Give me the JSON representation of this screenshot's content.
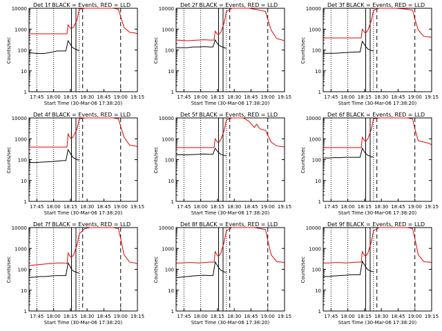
{
  "colors": {
    "events": "#000000",
    "lld": "#e00000"
  },
  "chart_data": [
    {
      "type": "line",
      "title": "Det 1f BLACK = Events, RED = LLD",
      "ylabel": "Counts/sec",
      "xlabel": "Start Time (30-Mar-06 17:38:20)",
      "y_scale": "log",
      "ylim": [
        1,
        10000
      ],
      "yticks": [
        "1",
        "10",
        "100",
        "1000",
        "10000"
      ],
      "xticks": [
        "17:45",
        "18:00",
        "18:15",
        "18:30",
        "18:45",
        "19:00",
        "19:15"
      ],
      "series": [
        {
          "name": "LLD",
          "x": [
            0,
            5,
            10,
            15,
            20,
            25,
            30,
            34,
            35,
            37,
            38,
            40,
            43,
            45,
            50,
            55,
            60,
            65,
            70,
            75,
            80,
            82,
            85,
            90,
            95,
            97
          ],
          "y": [
            600,
            600,
            600,
            600,
            600,
            600,
            600,
            600,
            1600,
            1100,
            1050,
            1300,
            2800,
            9000,
            10000,
            10000,
            10000,
            10000,
            10000,
            10000,
            9000,
            4000,
            1200,
            700,
            650,
            600
          ]
        },
        {
          "name": "Events",
          "x": [
            0,
            5,
            10,
            15,
            20,
            25,
            30,
            33,
            35,
            37,
            38,
            40,
            43,
            45
          ],
          "y": [
            75,
            70,
            68,
            70,
            78,
            90,
            90,
            90,
            280,
            190,
            150,
            120,
            100,
            95
          ]
        }
      ]
    },
    {
      "type": "line",
      "title": "Det 2f BLACK = Events, RED = LLD",
      "ylabel": "Counts/sec",
      "xlabel": "Start Time (30-Mar-06 17:38:20)",
      "y_scale": "log",
      "ylim": [
        1,
        10000
      ],
      "yticks": [
        "1",
        "10",
        "100",
        "1000",
        "10000"
      ],
      "xticks": [
        "17:45",
        "18:00",
        "18:15",
        "18:30",
        "18:45",
        "19:00",
        "19:15"
      ],
      "series": [
        {
          "name": "LLD",
          "x": [
            0,
            5,
            10,
            15,
            20,
            25,
            30,
            34,
            35,
            37,
            38,
            40,
            43,
            45,
            50,
            55,
            60,
            65,
            70,
            75,
            80,
            82,
            85,
            90,
            95,
            97
          ],
          "y": [
            300,
            290,
            280,
            290,
            300,
            310,
            300,
            300,
            800,
            560,
            550,
            700,
            2000,
            7000,
            10000,
            10000,
            10000,
            10000,
            9000,
            8000,
            7000,
            3000,
            900,
            350,
            300,
            280
          ]
        },
        {
          "name": "Events",
          "x": [
            0,
            5,
            10,
            15,
            20,
            25,
            30,
            33,
            35,
            37,
            38,
            40,
            43,
            45
          ],
          "y": [
            130,
            130,
            130,
            140,
            140,
            145,
            140,
            140,
            300,
            200,
            170,
            150,
            130,
            120
          ]
        }
      ]
    },
    {
      "type": "line",
      "title": "Det 3f BLACK = Events, RED = LLD",
      "ylabel": "Counts/sec",
      "xlabel": "Start Time (30-Mar-06 17:38:20)",
      "y_scale": "log",
      "ylim": [
        1,
        10000
      ],
      "yticks": [
        "1",
        "10",
        "100",
        "1000",
        "10000"
      ],
      "xticks": [
        "17:45",
        "18:00",
        "18:15",
        "18:30",
        "18:45",
        "19:00",
        "19:15"
      ],
      "series": [
        {
          "name": "LLD",
          "x": [
            0,
            5,
            10,
            15,
            20,
            25,
            30,
            34,
            35,
            37,
            38,
            40,
            43,
            45,
            50,
            55,
            60,
            65,
            70,
            75,
            80,
            82,
            85,
            90,
            95,
            97
          ],
          "y": [
            380,
            380,
            380,
            380,
            380,
            380,
            380,
            380,
            1000,
            700,
            650,
            900,
            2500,
            8000,
            10000,
            10000,
            10000,
            10000,
            9500,
            9000,
            8000,
            3000,
            900,
            450,
            420,
            400
          ]
        },
        {
          "name": "Events",
          "x": [
            0,
            5,
            10,
            15,
            20,
            25,
            30,
            33,
            35,
            37,
            38,
            40,
            43,
            45
          ],
          "y": [
            70,
            70,
            70,
            72,
            75,
            78,
            80,
            80,
            260,
            180,
            150,
            110,
            95,
            90
          ]
        }
      ]
    },
    {
      "type": "line",
      "title": "Det 4f BLACK = Events, RED = LLD",
      "ylabel": "Counts/sec",
      "xlabel": "Start Time (30-Mar-06 17:38:20)",
      "y_scale": "log",
      "ylim": [
        1,
        10000
      ],
      "yticks": [
        "1",
        "10",
        "100",
        "1000",
        "10000"
      ],
      "xticks": [
        "17:45",
        "18:00",
        "18:15",
        "18:30",
        "18:45",
        "19:00",
        "19:15"
      ],
      "series": [
        {
          "name": "LLD",
          "x": [
            0,
            5,
            10,
            15,
            20,
            25,
            30,
            34,
            35,
            37,
            38,
            40,
            43,
            45,
            50,
            55,
            60,
            65,
            70,
            75,
            80,
            82,
            85,
            90,
            95,
            97
          ],
          "y": [
            400,
            400,
            400,
            400,
            400,
            400,
            400,
            400,
            1700,
            1100,
            1000,
            1400,
            3000,
            9000,
            10000,
            10000,
            10000,
            10000,
            10000,
            10000,
            9000,
            4000,
            1200,
            500,
            450,
            420
          ]
        },
        {
          "name": "Events",
          "x": [
            0,
            5,
            10,
            15,
            20,
            25,
            30,
            33,
            35,
            37,
            38,
            40,
            43,
            45
          ],
          "y": [
            75,
            72,
            75,
            78,
            80,
            85,
            90,
            90,
            300,
            200,
            160,
            120,
            100,
            95
          ]
        }
      ]
    },
    {
      "type": "line",
      "title": "Det 5f BLACK = Events, RED = LLD",
      "ylabel": "Counts/sec",
      "xlabel": "Start Time (30-Mar-06 17:38:20)",
      "y_scale": "log",
      "ylim": [
        1,
        10000
      ],
      "yticks": [
        "1",
        "10",
        "100",
        "1000",
        "10000"
      ],
      "xticks": [
        "17:45",
        "18:00",
        "18:15",
        "18:30",
        "18:45",
        "19:00",
        "19:15"
      ],
      "series": [
        {
          "name": "LLD",
          "x": [
            0,
            5,
            10,
            15,
            20,
            25,
            30,
            34,
            35,
            37,
            38,
            40,
            43,
            45,
            50,
            55,
            60,
            65,
            70,
            72,
            75,
            80,
            82,
            85,
            90,
            95,
            97
          ],
          "y": [
            380,
            380,
            380,
            380,
            380,
            380,
            380,
            380,
            1000,
            700,
            650,
            900,
            2500,
            8000,
            10000,
            10000,
            10000,
            7000,
            3500,
            5000,
            3000,
            2500,
            1500,
            700,
            450,
            420,
            400
          ]
        },
        {
          "name": "Events",
          "x": [
            0,
            5,
            10,
            15,
            20,
            25,
            30,
            33,
            35,
            37,
            38,
            40,
            43,
            45
          ],
          "y": [
            170,
            170,
            170,
            175,
            180,
            185,
            180,
            180,
            350,
            250,
            220,
            180,
            160,
            150
          ]
        }
      ]
    },
    {
      "type": "line",
      "title": "Det 6f BLACK = Events, RED = LLD",
      "ylabel": "Counts/sec",
      "xlabel": "Start Time (30-Mar-06 17:38:20)",
      "y_scale": "log",
      "ylim": [
        1,
        10000
      ],
      "yticks": [
        "1",
        "10",
        "100",
        "1000",
        "10000"
      ],
      "xticks": [
        "17:45",
        "18:00",
        "18:15",
        "18:30",
        "18:45",
        "19:00",
        "19:15"
      ],
      "series": [
        {
          "name": "LLD",
          "x": [
            0,
            5,
            10,
            15,
            20,
            25,
            30,
            34,
            35,
            37,
            38,
            40,
            43,
            45,
            50,
            55,
            60,
            65,
            70,
            75,
            80,
            82,
            85,
            90,
            95,
            97
          ],
          "y": [
            380,
            380,
            380,
            380,
            380,
            380,
            380,
            380,
            1200,
            800,
            750,
            1000,
            2800,
            9000,
            10000,
            10000,
            10000,
            10000,
            10000,
            10000,
            9000,
            3000,
            800,
            700,
            600,
            500
          ]
        },
        {
          "name": "Events",
          "x": [
            0,
            5,
            10,
            15,
            20,
            25,
            30,
            33,
            35,
            37,
            38,
            40,
            43,
            45
          ],
          "y": [
            120,
            120,
            125,
            125,
            130,
            130,
            130,
            130,
            350,
            230,
            200,
            160,
            140,
            130
          ]
        }
      ]
    },
    {
      "type": "line",
      "title": "Det 7f BLACK = Events, RED = LLD",
      "ylabel": "Counts/sec",
      "xlabel": "Start Time (30-Mar-06 17:38:20)",
      "y_scale": "log",
      "ylim": [
        1,
        10000
      ],
      "yticks": [
        "1",
        "10",
        "100",
        "1000",
        "10000"
      ],
      "xticks": [
        "17:45",
        "18:00",
        "18:15",
        "18:30",
        "18:45",
        "19:00",
        "19:15"
      ],
      "series": [
        {
          "name": "LLD",
          "x": [
            0,
            5,
            10,
            15,
            20,
            25,
            30,
            34,
            35,
            37,
            38,
            40,
            43,
            45,
            50,
            55,
            60,
            65,
            70,
            75,
            80,
            82,
            85,
            90,
            95,
            97
          ],
          "y": [
            150,
            160,
            170,
            180,
            190,
            200,
            200,
            190,
            600,
            400,
            380,
            500,
            1500,
            5000,
            9000,
            10000,
            10000,
            10000,
            10000,
            10000,
            9000,
            3000,
            500,
            220,
            200,
            180
          ]
        },
        {
          "name": "Events",
          "x": [
            0,
            5,
            10,
            15,
            20,
            25,
            30,
            33,
            35,
            37,
            38,
            40,
            43,
            45
          ],
          "y": [
            40,
            42,
            45,
            45,
            48,
            50,
            50,
            50,
            200,
            130,
            100,
            80,
            70,
            65
          ]
        }
      ]
    },
    {
      "type": "line",
      "title": "Det 8f BLACK = Events, RED = LLD",
      "ylabel": "Counts/sec",
      "xlabel": "Start Time (30-Mar-06 17:38:20)",
      "y_scale": "log",
      "ylim": [
        1,
        10000
      ],
      "yticks": [
        "1",
        "10",
        "100",
        "1000",
        "10000"
      ],
      "xticks": [
        "17:45",
        "18:00",
        "18:15",
        "18:30",
        "18:45",
        "19:00",
        "19:15"
      ],
      "series": [
        {
          "name": "LLD",
          "x": [
            0,
            5,
            10,
            15,
            20,
            25,
            30,
            34,
            35,
            37,
            38,
            40,
            43,
            45,
            50,
            55,
            60,
            65,
            70,
            75,
            80,
            82,
            85,
            90,
            95,
            97
          ],
          "y": [
            200,
            200,
            210,
            210,
            200,
            210,
            220,
            220,
            700,
            450,
            420,
            600,
            2000,
            7000,
            10000,
            10000,
            10000,
            10000,
            10000,
            9000,
            8000,
            2500,
            500,
            230,
            220,
            210
          ]
        },
        {
          "name": "Events",
          "x": [
            0,
            5,
            10,
            15,
            20,
            25,
            30,
            33,
            35,
            37,
            38,
            40,
            43,
            45
          ],
          "y": [
            40,
            42,
            45,
            48,
            50,
            52,
            50,
            50,
            220,
            150,
            120,
            90,
            75,
            70
          ]
        }
      ]
    },
    {
      "type": "line",
      "title": "Det 9f BLACK = Events, RED = LLD",
      "ylabel": "Counts/sec",
      "xlabel": "Start Time (30-Mar-06 17:38:20)",
      "y_scale": "log",
      "ylim": [
        1,
        10000
      ],
      "yticks": [
        "1",
        "10",
        "100",
        "1000",
        "10000"
      ],
      "xticks": [
        "17:45",
        "18:00",
        "18:15",
        "18:30",
        "18:45",
        "19:00",
        "19:15"
      ],
      "series": [
        {
          "name": "LLD",
          "x": [
            0,
            5,
            10,
            15,
            20,
            25,
            30,
            34,
            35,
            37,
            38,
            40,
            43,
            45,
            50,
            55,
            60,
            65,
            70,
            75,
            80,
            82,
            85,
            90,
            95,
            97
          ],
          "y": [
            200,
            200,
            210,
            210,
            200,
            210,
            220,
            220,
            700,
            450,
            420,
            600,
            2000,
            7000,
            10000,
            10000,
            10000,
            10000,
            10000,
            10000,
            9000,
            3000,
            500,
            230,
            220,
            210
          ]
        },
        {
          "name": "Events",
          "x": [
            0,
            5,
            10,
            15,
            20,
            25,
            30,
            33,
            35,
            37,
            38,
            40,
            43,
            45
          ],
          "y": [
            45,
            45,
            48,
            50,
            52,
            55,
            55,
            55,
            240,
            160,
            130,
            95,
            80,
            75
          ]
        }
      ]
    }
  ]
}
